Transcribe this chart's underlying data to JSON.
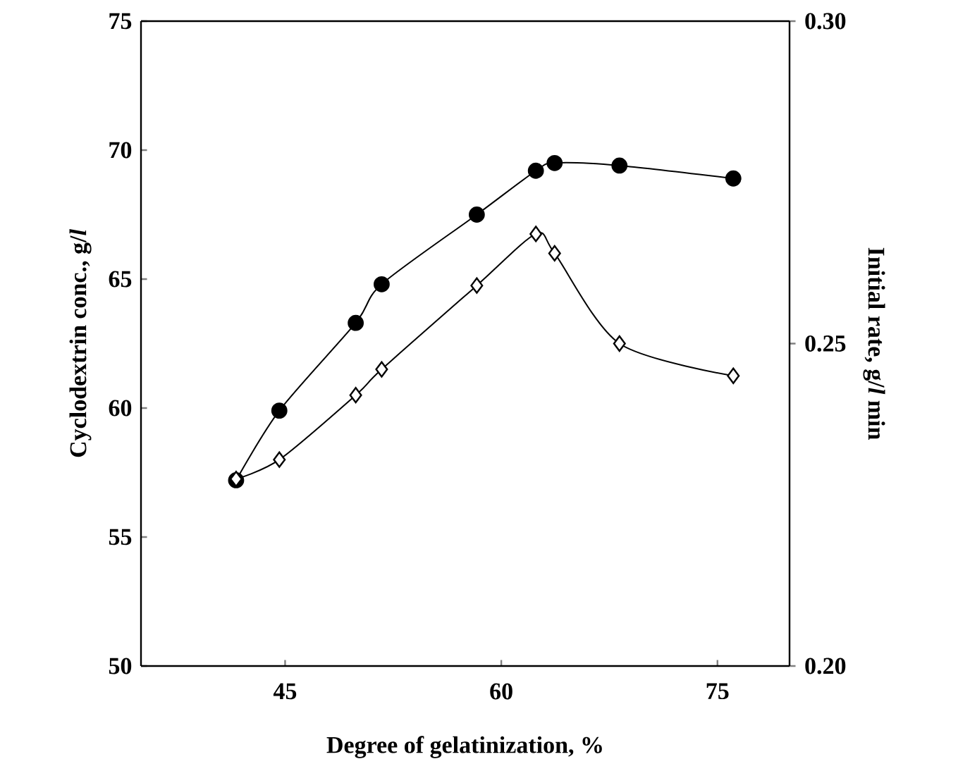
{
  "chart_data": {
    "type": "line",
    "xlabel": "Degree of gelatinization, %",
    "ylabel": "Cyclodextrin conc., g/*l*",
    "y2label": "Initial rate, g/*l* min",
    "xlim": [
      35,
      80
    ],
    "xticks": [
      45,
      60,
      75
    ],
    "ylim": [
      50,
      75
    ],
    "yticks": [
      50,
      55,
      60,
      65,
      70,
      75
    ],
    "y2lim": [
      0.2,
      0.3
    ],
    "y2ticks": [
      {
        "value": 0.2,
        "label": "0.20"
      },
      0.25,
      {
        "value": 0.3,
        "label": "0.30"
      }
    ],
    "line_style": "solid",
    "series": [
      {
        "color": "#000000",
        "marker": "circle",
        "x": [
          41.6,
          44.6,
          49.9,
          51.7,
          58.3,
          62.4,
          63.7,
          68.2,
          76.1
        ],
        "values": [
          57.2,
          59.9,
          63.3,
          64.8,
          67.5,
          69.2,
          69.5,
          69.4,
          68.9
        ]
      },
      {
        "color": "#000000",
        "marker": "diamond",
        "axis": "y2",
        "x": [
          41.6,
          44.6,
          49.9,
          51.7,
          58.3,
          62.4,
          63.7,
          68.2,
          76.1
        ],
        "values": [
          0.229,
          0.232,
          0.242,
          0.246,
          0.259,
          0.267,
          0.264,
          0.25,
          0.245
        ]
      }
    ]
  }
}
